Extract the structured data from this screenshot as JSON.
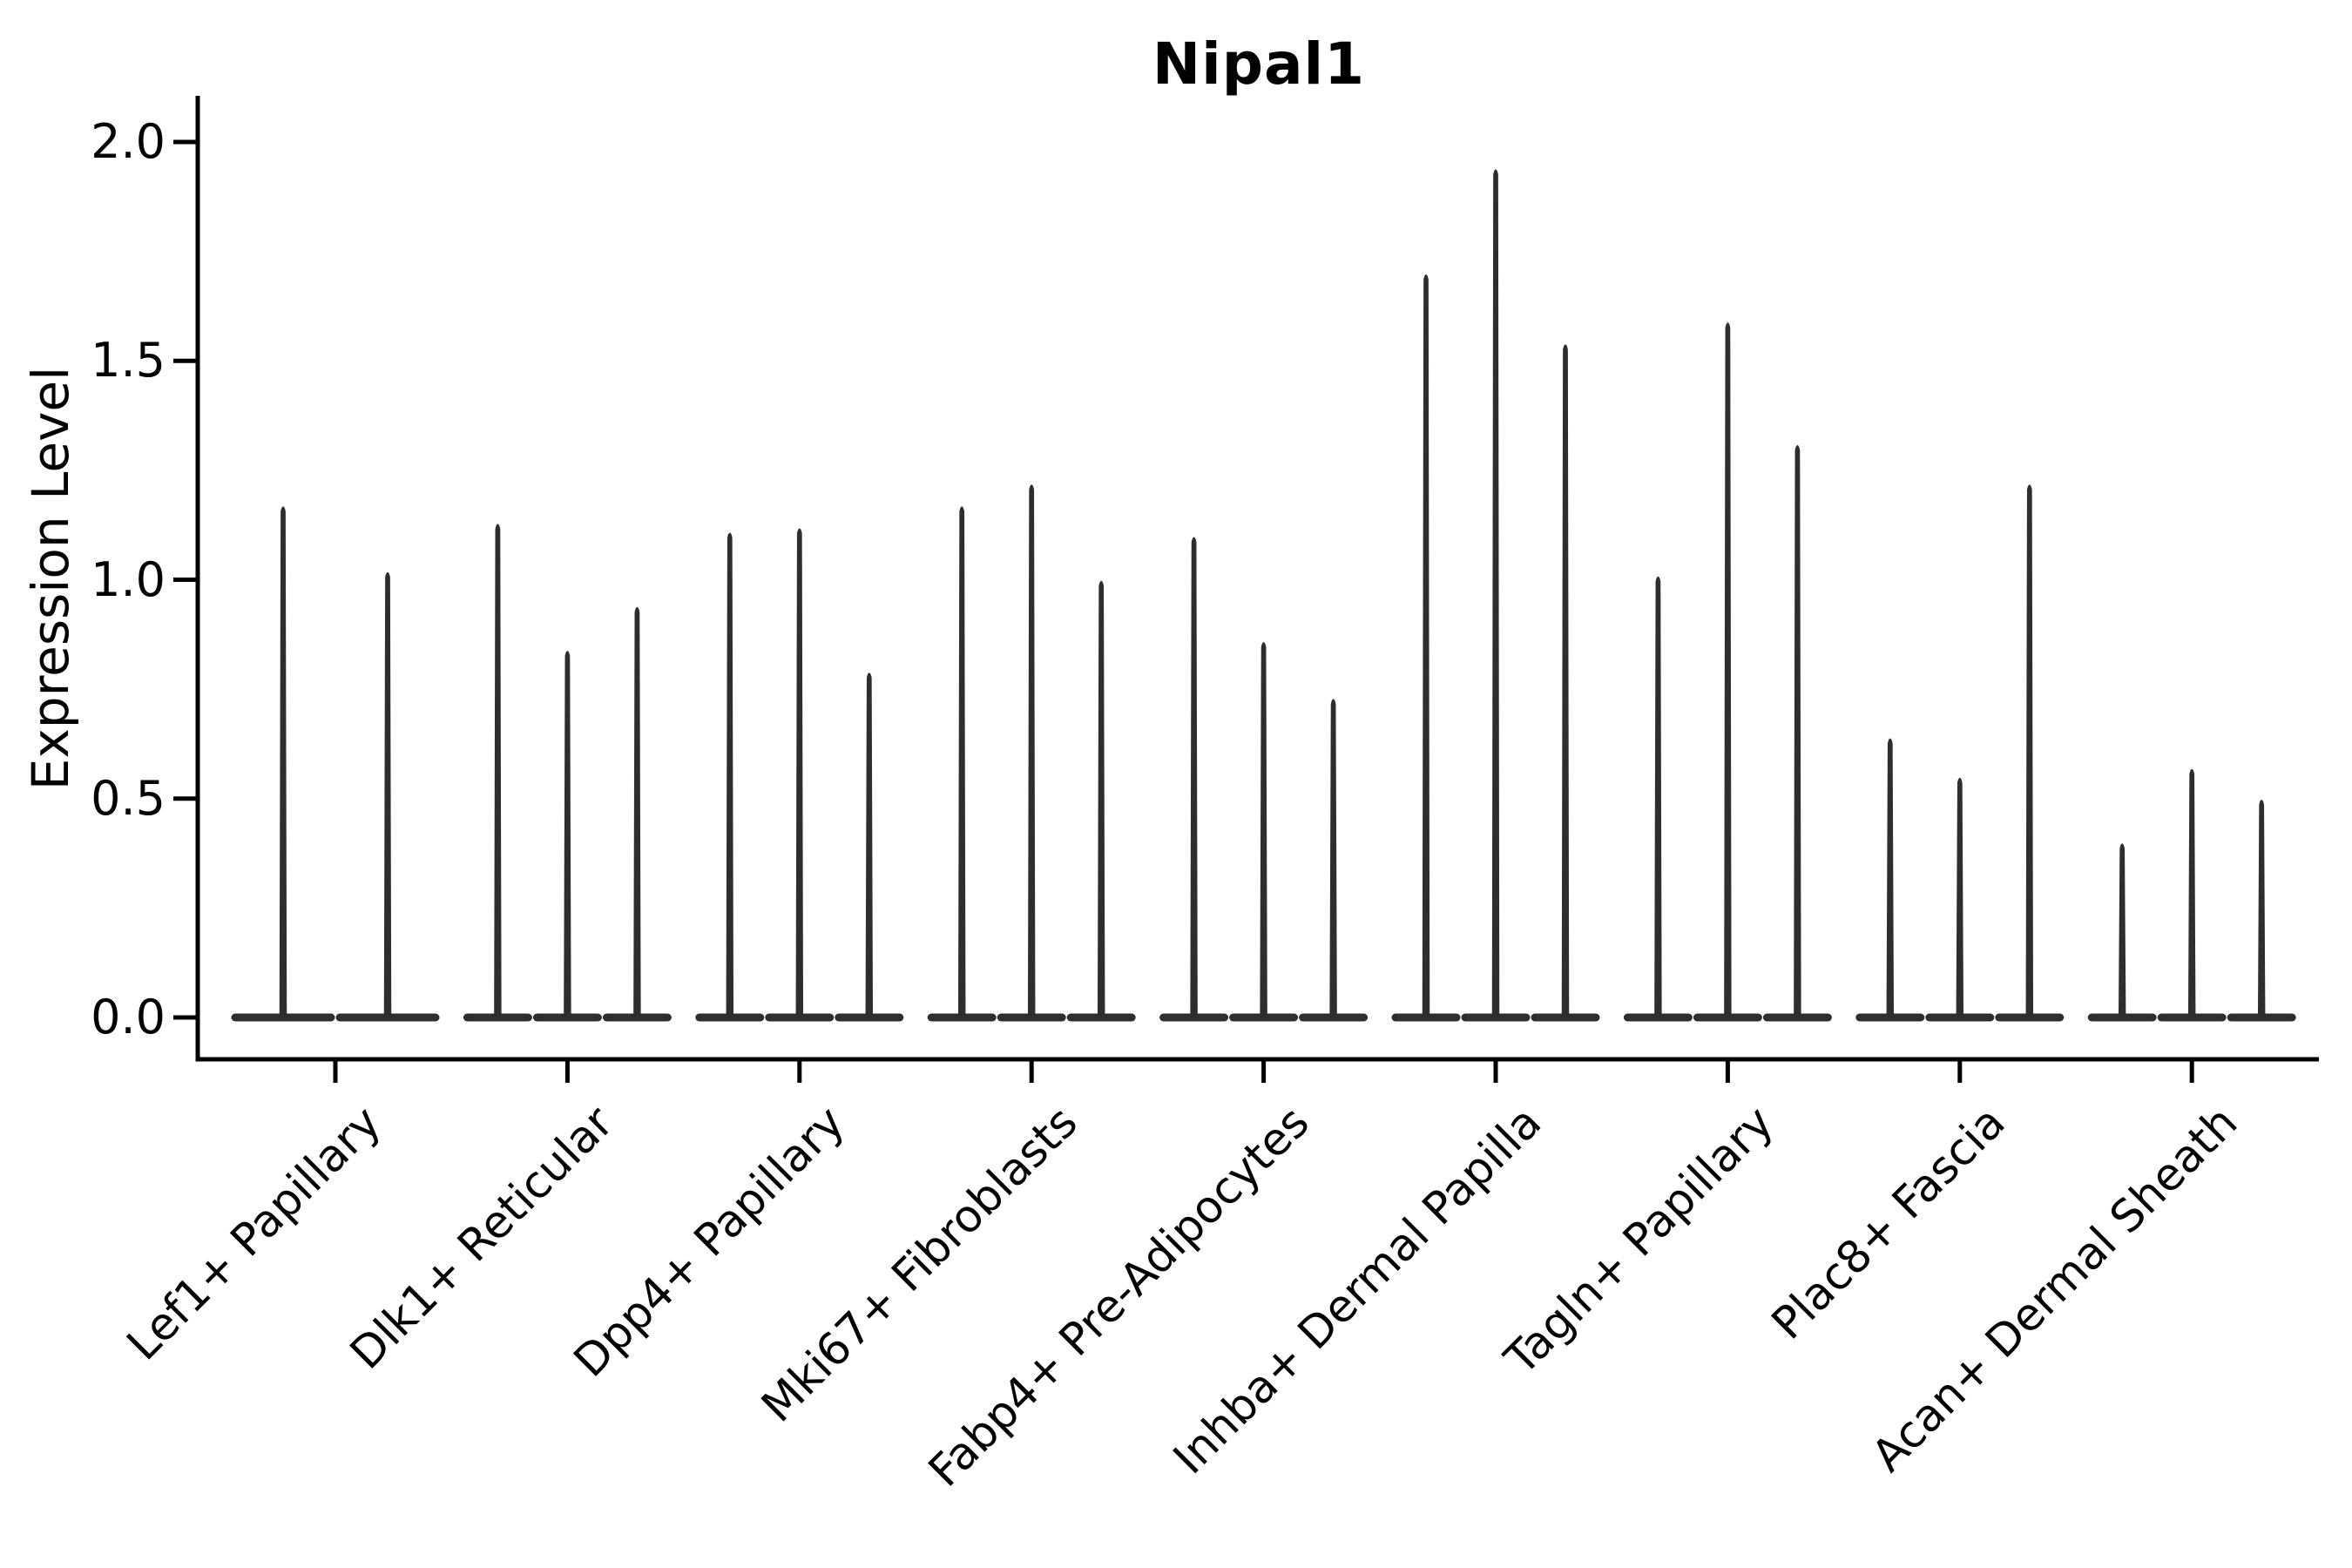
{
  "chart_data": {
    "type": "violin",
    "title": "Nipal1",
    "ylabel": "Expression Level",
    "xlabel": "",
    "ylim": [
      0.0,
      2.0
    ],
    "ytick_labels": [
      "0.0",
      "0.5",
      "1.0",
      "1.5",
      "2.0"
    ],
    "ytick_values": [
      0.0,
      0.5,
      1.0,
      1.5,
      2.0
    ],
    "grid": false,
    "legend_position": "none",
    "style_note": "very thin spike-like violins rising from a flat baseline at 0",
    "categories": [
      "Lef1+ Papillary",
      "Dlk1+ Reticular",
      "Dpp4+ Papillary",
      "Mki67+ Fibroblasts",
      "Fabp4+ Pre-Adipocytes",
      "Inhba+ Dermal Papilla",
      "Tagln+ Papillary",
      "Plac8+ Fascia",
      "Acan+ Dermal Sheath"
    ],
    "series": [
      {
        "category": "Lef1+ Papillary",
        "violin_max_values": [
          1.17,
          1.02
        ]
      },
      {
        "category": "Dlk1+ Reticular",
        "violin_max_values": [
          1.13,
          0.84,
          0.94
        ]
      },
      {
        "category": "Dpp4+ Papillary",
        "violin_max_values": [
          1.11,
          1.12,
          0.79
        ]
      },
      {
        "category": "Mki67+ Fibroblasts",
        "violin_max_values": [
          1.17,
          1.22,
          1.0
        ]
      },
      {
        "category": "Fabp4+ Pre-Adipocytes",
        "violin_max_values": [
          1.1,
          0.86,
          0.73
        ]
      },
      {
        "category": "Inhba+ Dermal Papilla",
        "violin_max_values": [
          1.7,
          1.94,
          1.54
        ]
      },
      {
        "category": "Tagln+ Papillary",
        "violin_max_values": [
          1.01,
          1.59,
          1.31
        ]
      },
      {
        "category": "Plac8+ Fascia",
        "violin_max_values": [
          0.64,
          0.55,
          1.22
        ]
      },
      {
        "category": "Acan+ Dermal Sheath",
        "violin_max_values": [
          0.4,
          0.57,
          0.5
        ]
      }
    ],
    "colors": {
      "violin": "#2e2e2e",
      "axis": "#000000",
      "text": "#000000",
      "background": "#ffffff"
    }
  }
}
